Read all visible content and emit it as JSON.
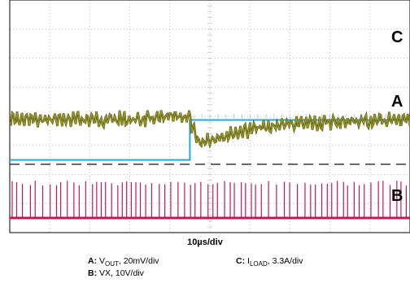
{
  "chart_data": {
    "type": "line",
    "title": "",
    "xlabel": "10µs/div",
    "grid": true,
    "x_divisions": 10,
    "y_divisions": 8,
    "step_time_div": 4.5,
    "series": [
      {
        "name": "C",
        "quantity": "ILOAD",
        "scale": "3.3A/div",
        "color": "#2aa7d8",
        "shape": "load step",
        "level_before_div": 2.0,
        "level_after_div": 3.3
      },
      {
        "name": "A",
        "quantity": "VOUT",
        "scale": "20mV/div",
        "color": "#9b9b1e",
        "shape": "ripple with undershoot and recovery",
        "ripple_pp_div": 0.35,
        "undershoot_div": 0.9,
        "recovery_time_div": 4.8
      },
      {
        "name": "B",
        "quantity": "VX",
        "scale": "10V/div",
        "color": "#c2185b",
        "shape": "switching pulses",
        "pulse_amplitude_div": 1.2
      }
    ],
    "reference_lines": [
      "dashed black baseline",
      "dash-dot trace A reference"
    ]
  },
  "channel_tags": {
    "c": "C",
    "a": "A",
    "b": "B"
  },
  "timebase": "10µs/div",
  "legend": {
    "a_key": "A:",
    "a_name": "V",
    "a_sub": "OUT",
    "a_scale": ", 20mV/div",
    "b_key": "B:",
    "b_text": "VX, 10V/div",
    "c_key": "C:",
    "c_name": "I",
    "c_sub": "LOAD",
    "c_scale": ", 3.3A/div"
  }
}
